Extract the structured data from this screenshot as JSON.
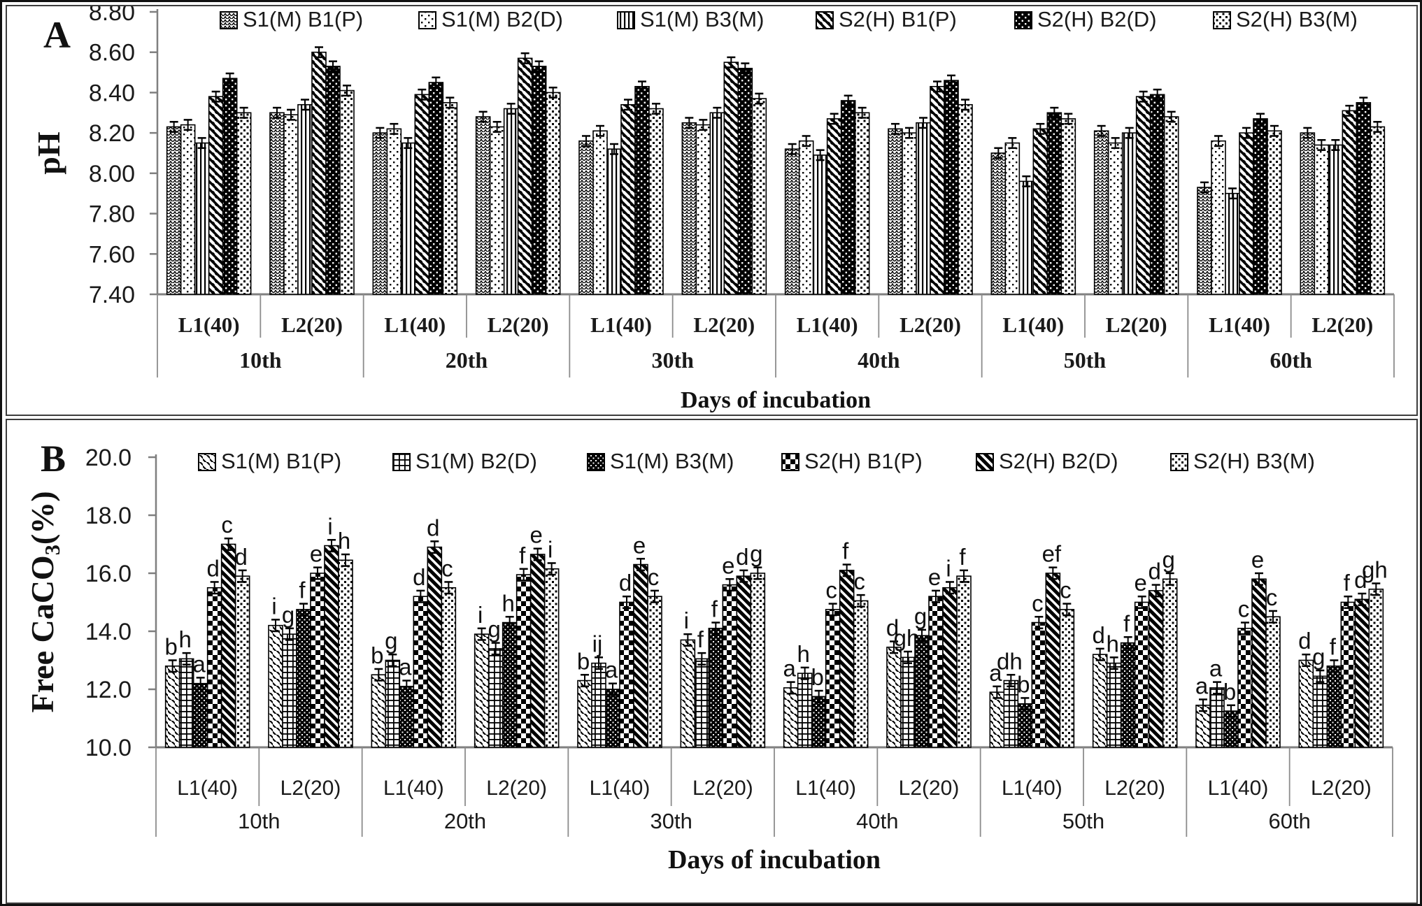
{
  "figure": {
    "panels": [
      {
        "label": "A"
      },
      {
        "label": "B"
      }
    ]
  },
  "chart_data": [
    {
      "id": "ph-chart",
      "type": "bar",
      "panel": "A",
      "ylabel": "pH",
      "xlabel": "Days of incubation",
      "ylim": [
        7.4,
        8.8
      ],
      "ytick_step": 0.2,
      "ytick_labels": [
        "8.80",
        "8.60",
        "8.40",
        "8.20",
        "8.00",
        "7.80",
        "7.60",
        "7.40"
      ],
      "days": [
        "10th",
        "20th",
        "30th",
        "40th",
        "50th",
        "60th"
      ],
      "levels": [
        "L1(40)",
        "L2(20)"
      ],
      "grid": false,
      "legend_position": "top",
      "error_bar": 0.025,
      "series": [
        {
          "name": "S1(M) B1(P)",
          "pattern": "scale",
          "values": [
            8.23,
            8.3,
            8.2,
            8.28,
            8.16,
            8.25,
            8.12,
            8.22,
            8.1,
            8.21,
            7.93,
            8.2
          ]
        },
        {
          "name": "S1(M) B2(D)",
          "pattern": "dots",
          "values": [
            8.24,
            8.29,
            8.22,
            8.23,
            8.21,
            8.24,
            8.16,
            8.2,
            8.15,
            8.15,
            8.16,
            8.14
          ]
        },
        {
          "name": "S1(M) B3(M)",
          "pattern": "vlines",
          "values": [
            8.15,
            8.34,
            8.15,
            8.32,
            8.12,
            8.3,
            8.09,
            8.25,
            7.96,
            8.2,
            7.9,
            8.14
          ]
        },
        {
          "name": "S2(H) B1(P)",
          "pattern": "diag",
          "values": [
            8.38,
            8.6,
            8.39,
            8.57,
            8.34,
            8.55,
            8.27,
            8.43,
            8.22,
            8.38,
            8.2,
            8.31
          ]
        },
        {
          "name": "S2(H) B2(D)",
          "pattern": "blackdot",
          "values": [
            8.47,
            8.53,
            8.45,
            8.53,
            8.43,
            8.52,
            8.36,
            8.46,
            8.3,
            8.39,
            8.27,
            8.35
          ]
        },
        {
          "name": "S2(H) B3(M)",
          "pattern": "checkdot",
          "values": [
            8.3,
            8.41,
            8.35,
            8.4,
            8.32,
            8.37,
            8.3,
            8.34,
            8.27,
            8.28,
            8.21,
            8.23
          ]
        }
      ]
    },
    {
      "id": "caco3-chart",
      "type": "bar",
      "panel": "B",
      "ylabel": "Free CaCO3(%)",
      "ylabel_parts": {
        "main": "Free CaCO",
        "sub": "3",
        "suffix": "(%)"
      },
      "xlabel": "Days of incubation",
      "ylim": [
        10.0,
        20.0
      ],
      "ytick_step": 2.0,
      "ytick_labels": [
        "20.0",
        "18.0",
        "16.0",
        "14.0",
        "12.0",
        "10.0"
      ],
      "days": [
        "10th",
        "20th",
        "30th",
        "40th",
        "50th",
        "60th"
      ],
      "levels": [
        "L1(40)",
        "L2(20)"
      ],
      "grid": false,
      "legend_position": "top",
      "error_bar": 0.2,
      "series": [
        {
          "name": "S1(M) B1(P)",
          "pattern": "ldiag",
          "values": [
            12.8,
            14.2,
            12.5,
            13.9,
            12.3,
            13.7,
            12.05,
            13.45,
            11.9,
            13.2,
            11.45,
            13.0
          ],
          "letters": [
            "b",
            "i",
            "b",
            "i",
            "b",
            "i",
            "a",
            "d",
            "a",
            "d",
            "a",
            "d"
          ]
        },
        {
          "name": "S1(M) B2(D)",
          "pattern": "grid",
          "values": [
            13.05,
            13.9,
            13.0,
            13.4,
            12.9,
            13.05,
            12.55,
            13.1,
            12.3,
            12.9,
            12.05,
            12.45
          ],
          "letters": [
            "h",
            "g",
            "g",
            "g",
            "ij",
            "f",
            "h",
            "gh",
            "dh",
            "h",
            "a",
            "g"
          ]
        },
        {
          "name": "S1(M) B3(M)",
          "pattern": "darkdot",
          "values": [
            12.2,
            14.75,
            12.1,
            14.3,
            12.0,
            14.1,
            11.75,
            13.85,
            11.5,
            13.6,
            11.25,
            12.8
          ],
          "letters": [
            "a",
            "f",
            "a",
            "h",
            "a",
            "f",
            "b",
            "g",
            "b",
            "f",
            "b",
            "f"
          ]
        },
        {
          "name": "S2(H) B1(P)",
          "pattern": "checker",
          "values": [
            15.5,
            16.0,
            15.2,
            15.95,
            15.0,
            15.6,
            14.75,
            15.2,
            14.3,
            15.0,
            14.1,
            15.0
          ],
          "letters": [
            "d",
            "e",
            "d",
            "f",
            "d",
            "e",
            "c",
            "e",
            "c",
            "e",
            "c",
            "f"
          ]
        },
        {
          "name": "S2(H) B2(D)",
          "pattern": "hdiag",
          "values": [
            17.0,
            16.95,
            16.9,
            16.65,
            16.3,
            15.9,
            16.1,
            15.5,
            16.0,
            15.4,
            15.8,
            15.1
          ],
          "letters": [
            "c",
            "i",
            "d",
            "e",
            "e",
            "d",
            "f",
            "i",
            "ef",
            "d",
            "e",
            "d"
          ]
        },
        {
          "name": "S2(H) B3(M)",
          "pattern": "checkdot",
          "values": [
            15.9,
            16.45,
            15.5,
            16.15,
            15.2,
            16.0,
            15.05,
            15.9,
            14.75,
            15.8,
            14.5,
            15.45
          ],
          "letters": [
            "d",
            "h",
            "c",
            "i",
            "c",
            "g",
            "c",
            "f",
            "c",
            "g",
            "c",
            "gh"
          ]
        }
      ]
    }
  ]
}
